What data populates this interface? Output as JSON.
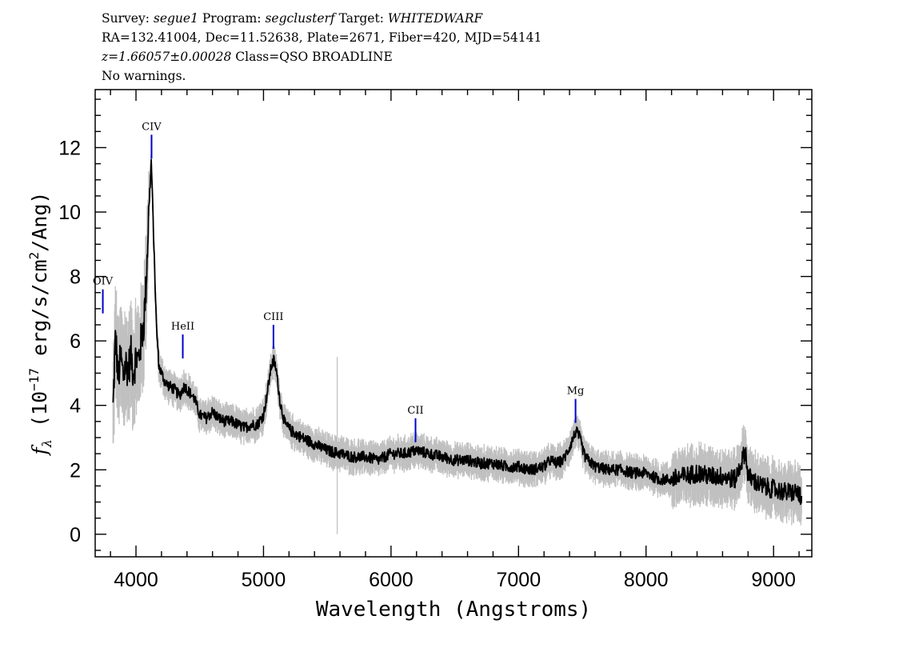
{
  "header": {
    "line1": {
      "survey_label": "Survey: ",
      "survey": "segue1",
      "program_label": " Program: ",
      "program": "segclusterf",
      "target_label": " Target: ",
      "target": "WHITEDWARF"
    },
    "line2": "RA=132.41004, Dec=11.52638, Plate=2671, Fiber=420, MJD=54141",
    "line3": {
      "redshift": "z=1.66057±0.00028",
      "class": " Class=QSO BROADLINE"
    },
    "line4": "No warnings."
  },
  "chart_data": {
    "type": "line",
    "xlabel": "Wavelength (Angstroms)",
    "ylabel_parts": {
      "f": "f",
      "sub": "λ",
      "pre": " (10",
      "exp": "−17",
      "mid": " erg/s/cm",
      "exp2": "2",
      "post": "/Ang)"
    },
    "xlim": [
      3680,
      9300
    ],
    "ylim": [
      -0.7,
      13.8
    ],
    "x_ticks": [
      4000,
      5000,
      6000,
      7000,
      8000,
      9000
    ],
    "y_ticks": [
      0,
      2,
      4,
      6,
      8,
      10,
      12
    ],
    "x_minor_step": 200,
    "y_minor_step": 0.5,
    "series": [
      {
        "role": "flux",
        "color": "#000000",
        "x": [
          3820,
          3840,
          3860,
          3880,
          3900,
          3920,
          3940,
          3960,
          3980,
          4000,
          4020,
          4040,
          4060,
          4080,
          4100,
          4120,
          4140,
          4160,
          4180,
          4200,
          4230,
          4260,
          4300,
          4340,
          4380,
          4420,
          4460,
          4500,
          4550,
          4600,
          4650,
          4700,
          4750,
          4800,
          4850,
          4900,
          4950,
          5000,
          5030,
          5060,
          5080,
          5100,
          5130,
          5170,
          5220,
          5300,
          5400,
          5500,
          5600,
          5700,
          5800,
          5900,
          6000,
          6100,
          6200,
          6300,
          6400,
          6500,
          6600,
          6700,
          6800,
          6900,
          7000,
          7100,
          7200,
          7250,
          7300,
          7350,
          7400,
          7450,
          7480,
          7520,
          7600,
          7700,
          7800,
          7900,
          8000,
          8100,
          8200,
          8300,
          8400,
          8500,
          8600,
          8700,
          8780,
          8800,
          8900,
          9000,
          9100,
          9200,
          9220
        ],
        "y": [
          3.9,
          6.2,
          4.8,
          5.5,
          4.9,
          5.3,
          5.1,
          5.6,
          5.0,
          5.5,
          5.4,
          6.0,
          6.5,
          7.8,
          10.0,
          11.6,
          9.0,
          6.5,
          5.2,
          5.0,
          4.7,
          4.6,
          4.5,
          4.3,
          4.6,
          4.4,
          4.2,
          3.7,
          3.6,
          3.8,
          3.6,
          3.5,
          3.5,
          3.4,
          3.3,
          3.4,
          3.4,
          3.7,
          4.4,
          5.2,
          5.4,
          5.1,
          4.1,
          3.4,
          3.2,
          3.0,
          2.8,
          2.6,
          2.5,
          2.4,
          2.4,
          2.3,
          2.5,
          2.5,
          2.6,
          2.5,
          2.4,
          2.3,
          2.3,
          2.2,
          2.2,
          2.1,
          2.1,
          2.0,
          2.1,
          2.3,
          2.2,
          2.3,
          2.7,
          3.2,
          3.0,
          2.4,
          2.1,
          2.0,
          2.0,
          1.9,
          1.9,
          1.7,
          1.7,
          1.8,
          1.9,
          1.8,
          1.8,
          1.7,
          2.6,
          1.8,
          1.5,
          1.4,
          1.3,
          1.3,
          0.9
        ]
      }
    ],
    "lines": [
      {
        "label": "OIV",
        "x": 3740,
        "y": 7.6,
        "color": "#0000cc"
      },
      {
        "label": "CIV",
        "x": 4122,
        "y": 12.4,
        "color": "#0000cc"
      },
      {
        "label": "HeII",
        "x": 4367,
        "y": 6.2,
        "color": "#0000cc"
      },
      {
        "label": "CIII",
        "x": 5078,
        "y": 6.5,
        "color": "#0000cc"
      },
      {
        "label": "CII",
        "x": 6192,
        "y": 3.6,
        "color": "#0000cc"
      },
      {
        "label": "Mg",
        "x": 7447,
        "y": 4.2,
        "color": "#0000cc"
      }
    ],
    "error_color": "#c0c0c0",
    "sky_line_x": 5578,
    "grid": false,
    "legend": "none"
  }
}
